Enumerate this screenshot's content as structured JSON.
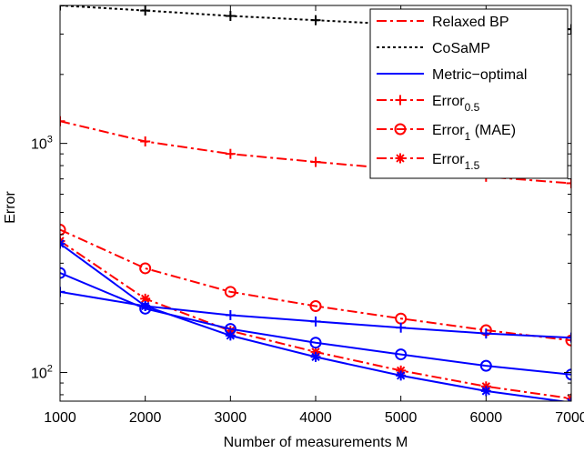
{
  "chart_data": {
    "type": "line",
    "xlabel": "Number of measurements M",
    "ylabel": "Error",
    "xlim": [
      1000,
      7000
    ],
    "ylim": [
      75,
      4000
    ],
    "yscale": "log",
    "grid": false,
    "legend_position": "top-right",
    "x_ticks": [
      "1000",
      "2000",
      "3000",
      "4000",
      "5000",
      "6000",
      "7000"
    ],
    "y_ticks": [
      {
        "value": 100,
        "base": "10",
        "exp": "2"
      },
      {
        "value": 1000,
        "base": "10",
        "exp": "3"
      }
    ],
    "x": [
      1000,
      2000,
      3000,
      4000,
      5000,
      6000,
      7000
    ],
    "legend": [
      {
        "text": "Relaxed BP",
        "sub": "",
        "suffix": "",
        "color": "#ff0000",
        "dash": "11,4,3,4",
        "marker": "none"
      },
      {
        "text": "CoSaMP",
        "sub": "",
        "suffix": "",
        "color": "#000000",
        "dash": "3,3",
        "marker": "none"
      },
      {
        "text": "Metric−optimal",
        "sub": "",
        "suffix": "",
        "color": "#0000ff",
        "dash": "",
        "marker": "none"
      },
      {
        "text": "Error",
        "sub": "0.5",
        "suffix": "",
        "color": "#ff0000",
        "dash": "11,4,3,4",
        "marker": "plus"
      },
      {
        "text": "Error",
        "sub": "1",
        "suffix": " (MAE)",
        "color": "#ff0000",
        "dash": "11,4,3,4",
        "marker": "circle"
      },
      {
        "text": "Error",
        "sub": "1.5",
        "suffix": "",
        "color": "#ff0000",
        "dash": "11,4,3,4",
        "marker": "asterisk"
      }
    ],
    "series": [
      {
        "color": "#000000",
        "dash": "3,3",
        "marker": "plus",
        "values": [
          4000,
          3800,
          3600,
          3450,
          3300,
          3200,
          3150
        ]
      },
      {
        "color": "#ff0000",
        "dash": "11,4,3,4",
        "marker": "plus",
        "values": [
          1250,
          1020,
          900,
          830,
          770,
          715,
          670
        ]
      },
      {
        "color": "#ff0000",
        "dash": "11,4,3,4",
        "marker": "circle",
        "values": [
          420,
          285,
          225,
          195,
          172,
          153,
          138
        ]
      },
      {
        "color": "#ff0000",
        "dash": "11,4,3,4",
        "marker": "asterisk",
        "values": [
          375,
          210,
          152,
          123,
          102,
          87,
          77
        ]
      },
      {
        "color": "#0000ff",
        "dash": "",
        "marker": "plus",
        "values": [
          225,
          195,
          178,
          167,
          157,
          148,
          142
        ]
      },
      {
        "color": "#0000ff",
        "dash": "",
        "marker": "circle",
        "values": [
          272,
          190,
          155,
          135,
          120,
          107,
          98
        ]
      },
      {
        "color": "#0000ff",
        "dash": "",
        "marker": "asterisk",
        "values": [
          365,
          195,
          145,
          117,
          97,
          83,
          74
        ]
      }
    ]
  }
}
